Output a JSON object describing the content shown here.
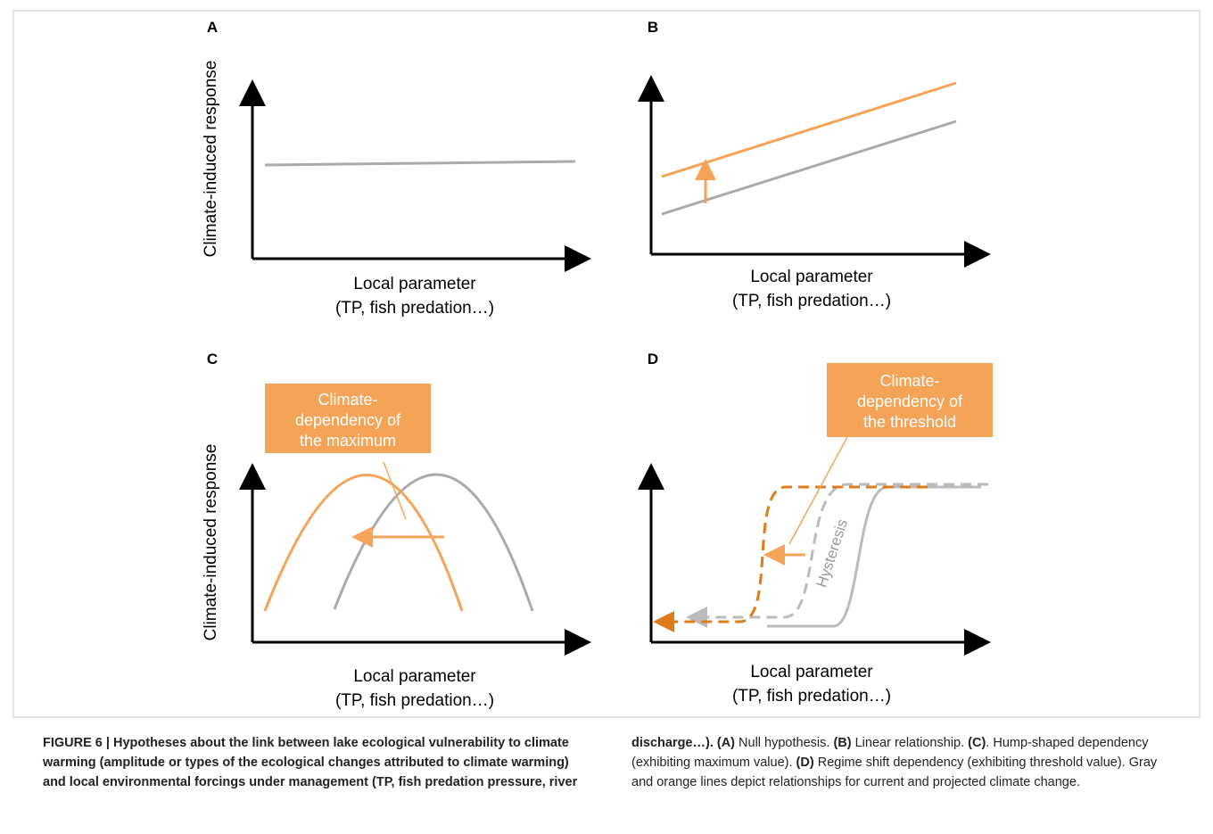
{
  "panels": [
    {
      "letter": "A",
      "y_label": "Climate-induced response",
      "x_label": [
        "Local parameter",
        "(TP, fish predation…)"
      ]
    },
    {
      "letter": "B",
      "x_label": [
        "Local parameter",
        "(TP, fish predation…)"
      ]
    },
    {
      "letter": "C",
      "y_label": "Climate-induced response",
      "x_label": [
        "Local parameter",
        "(TP, fish predation…)"
      ],
      "box": [
        "Climate-",
        "dependency of",
        "the maximum"
      ]
    },
    {
      "letter": "D",
      "x_label": [
        "Local parameter",
        "(TP, fish predation…)"
      ],
      "box": [
        "Climate-",
        "dependency of",
        "the threshold"
      ],
      "annotation": "Hysteresis"
    }
  ],
  "caption": [
    {
      "text": "FIGURE 6 | Hypotheses about the link between lake ecological vulnerability to climate warming (amplitude or types of the ecological changes attributed to climate warming) and local environmental forcings under management (TP, fish predation pressure, river discharge…). (A)",
      "bold": true
    },
    {
      "text": " Null hypothesis. ",
      "bold": false
    },
    {
      "text": "(B)",
      "bold": true
    },
    {
      "text": " Linear relationship. ",
      "bold": false
    },
    {
      "text": "(C)",
      "bold": true
    },
    {
      "text": ". Hump-shaped dependency (exhibiting maximum value). ",
      "bold": false
    },
    {
      "text": "(D)",
      "bold": true
    },
    {
      "text": " Regime shift dependency (exhibiting threshold value). Gray and orange lines depict relationships for current and projected climate change.",
      "bold": false
    }
  ]
}
